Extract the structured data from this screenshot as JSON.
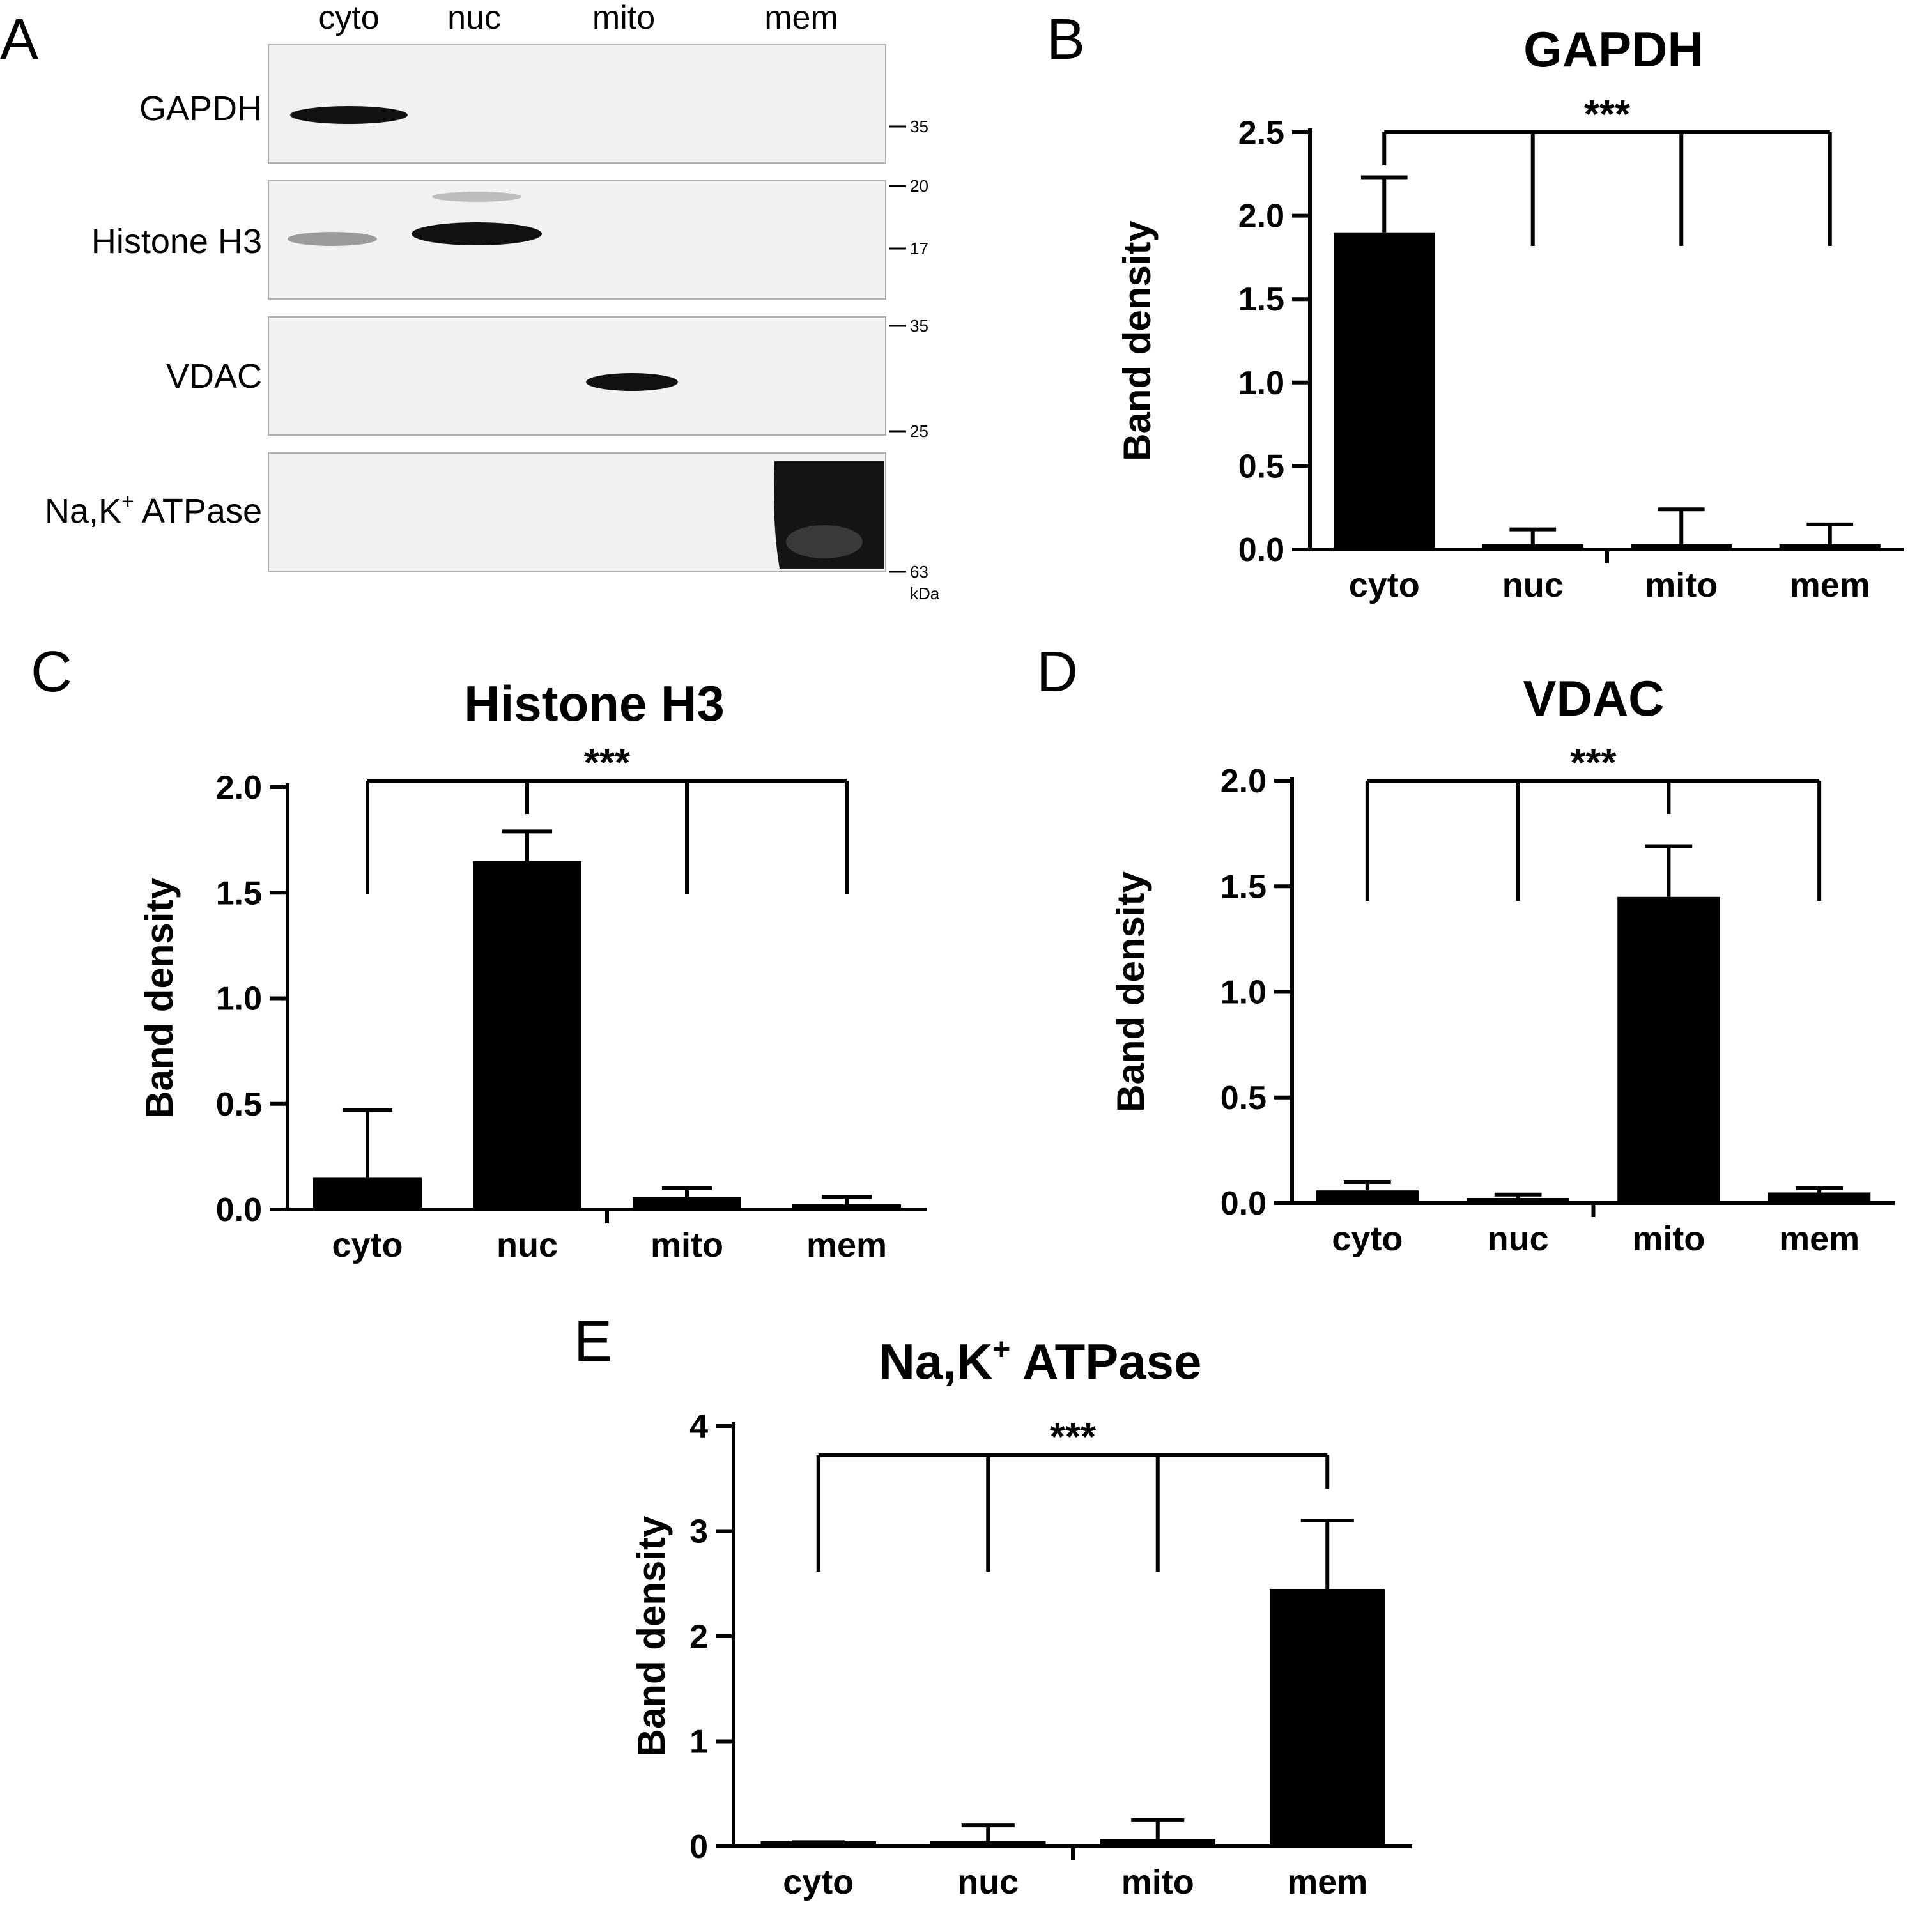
{
  "panel_letters": [
    "A",
    "B",
    "C",
    "D",
    "E"
  ],
  "blot": {
    "lanes": [
      "cyto",
      "nuc",
      "mito",
      "mem"
    ],
    "rows": [
      {
        "label": "GAPDH",
        "markers": [
          "35"
        ]
      },
      {
        "label": "Histone H3",
        "markers": [
          "20",
          "17"
        ]
      },
      {
        "label": "VDAC",
        "markers": [
          "35",
          "25"
        ]
      },
      {
        "label": "Na,K",
        "label_sup": "+",
        "label_suffix": " ATPase",
        "markers": [
          "63"
        ]
      }
    ],
    "unit": "kDa"
  },
  "chart_data": [
    {
      "panel": "B",
      "type": "bar",
      "title": "GAPDH",
      "title_sup": "",
      "title_suffix": "",
      "categories": [
        "cyto",
        "nuc",
        "mito",
        "mem"
      ],
      "values": [
        1.9,
        0.01,
        0.03,
        0.03
      ],
      "errors": [
        0.33,
        0.11,
        0.21,
        0.12
      ],
      "ylabel": "Band density",
      "ylim": [
        0,
        2.5
      ],
      "yticks": [
        "0.0",
        "0.5",
        "1.0",
        "1.5",
        "2.0",
        "2.5"
      ],
      "significance": "***",
      "comparison_reference": "cyto",
      "bar_color": "#000000"
    },
    {
      "panel": "C",
      "type": "bar",
      "title": "Histone H3",
      "title_sup": "",
      "title_suffix": "",
      "categories": [
        "cyto",
        "nuc",
        "mito",
        "mem"
      ],
      "values": [
        0.15,
        1.65,
        0.06,
        0.02
      ],
      "errors": [
        0.32,
        0.14,
        0.04,
        0.04
      ],
      "ylabel": "Band density",
      "ylim": [
        0,
        2.0
      ],
      "yticks": [
        "0.0",
        "0.5",
        "1.0",
        "1.5",
        "2.0"
      ],
      "significance": "***",
      "comparison_reference": "nuc",
      "bar_color": "#000000"
    },
    {
      "panel": "D",
      "type": "bar",
      "title": "VDAC",
      "title_sup": "",
      "title_suffix": "",
      "categories": [
        "cyto",
        "nuc",
        "mito",
        "mem"
      ],
      "values": [
        0.06,
        0.02,
        1.45,
        0.05
      ],
      "errors": [
        0.04,
        0.02,
        0.24,
        0.02
      ],
      "ylabel": "Band density",
      "ylim": [
        0,
        2.0
      ],
      "yticks": [
        "0.0",
        "0.5",
        "1.0",
        "1.5",
        "2.0"
      ],
      "significance": "***",
      "comparison_reference": "mito",
      "bar_color": "#000000"
    },
    {
      "panel": "E",
      "type": "bar",
      "title": "Na,K",
      "title_sup": "+",
      "title_suffix": " ATPase",
      "categories": [
        "cyto",
        "nuc",
        "mito",
        "mem"
      ],
      "values": [
        0.03,
        0.05,
        0.07,
        2.45
      ],
      "errors": [
        0.01,
        0.15,
        0.18,
        0.65
      ],
      "ylabel": "Band density",
      "ylim": [
        0,
        4
      ],
      "yticks": [
        "0",
        "1",
        "2",
        "3",
        "4"
      ],
      "significance": "***",
      "comparison_reference": "mem",
      "bar_color": "#000000"
    }
  ]
}
